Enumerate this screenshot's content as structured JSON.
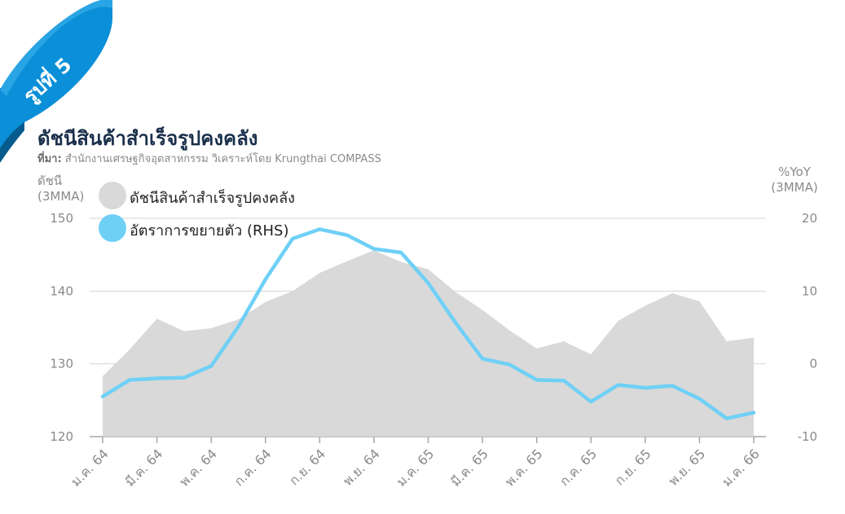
{
  "badge": {
    "label": "รูปที่ 5",
    "color": "#0a8fd8"
  },
  "header": {
    "title": "ดัชนีสินค้าสำเร็จรูปคงคลัง",
    "source_label": "ที่มา:",
    "source_text": " สำนักงานเศรษฐกิจอุตสาหกรรม วิเคราะห์โดย Krungthai COMPASS"
  },
  "left_axis_unit": {
    "line1": "ดัชนี",
    "line2": "(3MMA)"
  },
  "right_axis_unit": {
    "line1": "%YoY",
    "line2": "(3MMA)"
  },
  "legend": [
    {
      "label": "ดัชนีสินค้าสำเร็จรูปคงคลัง",
      "color": "#d9d9d9"
    },
    {
      "label": "อัตราการขยายตัว (RHS)",
      "color": "#6fd0f6"
    }
  ],
  "chart_data": {
    "type": "area",
    "x_tick_labels": [
      "ม.ค. 64",
      "มี.ค. 64",
      "พ.ค. 64",
      "ก.ค. 64",
      "ก.ย. 64",
      "พ.ย. 64",
      "ม.ค. 65",
      "มี.ค. 65",
      "พ.ค. 65",
      "ก.ค. 65",
      "ก.ย. 65",
      "พ.ย. 65",
      "ม.ค. 66"
    ],
    "x_tick_index": [
      0,
      2,
      4,
      6,
      8,
      10,
      12,
      14,
      16,
      18,
      20,
      22,
      24
    ],
    "y_left": {
      "min": 120,
      "max": 150,
      "ticks": [
        120,
        130,
        140,
        150
      ]
    },
    "y_right": {
      "min": -10,
      "max": 20,
      "ticks": [
        -10,
        0,
        10,
        20
      ],
      "tick_labels": [
        "-10",
        "0",
        "10",
        "20"
      ]
    },
    "series": [
      {
        "name": "ดัชนีสินค้าสำเร็จรูปคงคลัง",
        "type": "area",
        "axis": "left",
        "color": "#d9d9d9",
        "values": [
          128.3,
          132.0,
          136.2,
          134.5,
          134.9,
          136.1,
          138.5,
          140.0,
          142.5,
          144.1,
          145.6,
          144.0,
          143.0,
          139.9,
          137.4,
          134.6,
          132.1,
          133.1,
          131.3,
          135.9,
          138.0,
          139.7,
          138.6,
          133.1,
          133.6
        ]
      },
      {
        "name": "อัตราการขยายตัว (RHS)",
        "type": "line",
        "axis": "right",
        "color": "#6fd0f6",
        "values": [
          -4.5,
          -2.2,
          -2.0,
          -1.9,
          -0.3,
          5.1,
          11.6,
          17.2,
          18.5,
          17.7,
          15.8,
          15.3,
          11.1,
          5.7,
          0.7,
          -0.1,
          -2.2,
          -2.3,
          -5.2,
          -2.9,
          -3.3,
          -3.0,
          -4.8,
          -7.5,
          -6.7
        ]
      }
    ],
    "grid": "horizontal"
  }
}
